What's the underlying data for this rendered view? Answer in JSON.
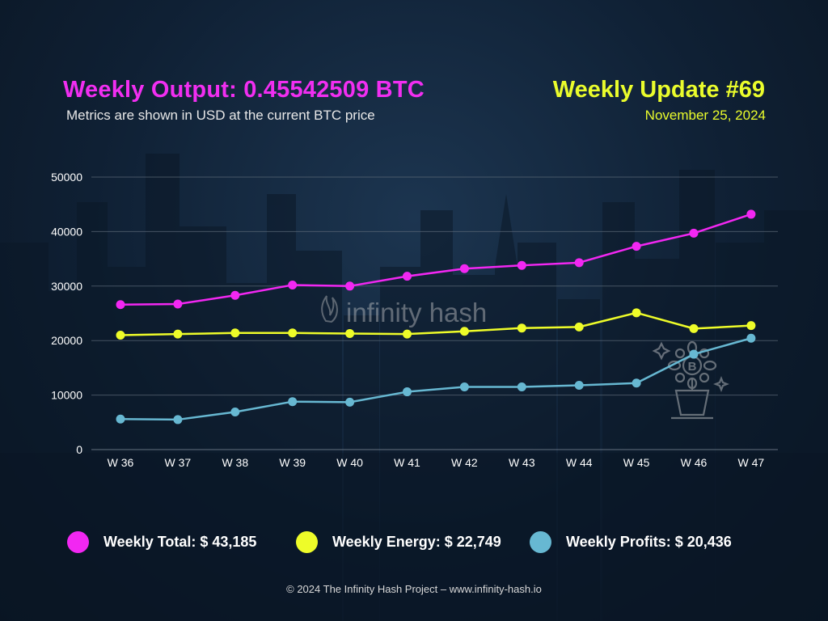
{
  "header": {
    "title": "Weekly Output: 0.45542509 BTC",
    "subtitle": "Metrics are shown in USD at the current BTC price",
    "update_title": "Weekly Update #69",
    "date": "November 25, 2024"
  },
  "watermark": {
    "text": "infinity hash",
    "icon": "bitcoin-plant-icon"
  },
  "legend": [
    {
      "label": "Weekly Total: $ 43,185",
      "color": "#f227f2"
    },
    {
      "label": "Weekly Energy: $ 22,749",
      "color": "#eefc29"
    },
    {
      "label": "Weekly Profits: $ 20,436",
      "color": "#67b8d2"
    }
  ],
  "footer": "© 2024 The Infinity Hash Project – www.infinity-hash.io",
  "colors": {
    "total": "#f227f2",
    "energy": "#eefc29",
    "profits": "#67b8d2",
    "background": "#0f2034"
  },
  "chart_data": {
    "type": "line",
    "categories": [
      "W 36",
      "W 37",
      "W 38",
      "W 39",
      "W 40",
      "W 41",
      "W 42",
      "W 43",
      "W 44",
      "W 45",
      "W 46",
      "W 47"
    ],
    "yticks": [
      0,
      10000,
      20000,
      30000,
      40000,
      50000
    ],
    "ylim": [
      0,
      50000
    ],
    "grid": true,
    "legend_position": "bottom",
    "series": [
      {
        "key": "total",
        "color": "#f227f2",
        "values": [
          26600,
          26700,
          28300,
          30200,
          30000,
          31800,
          33200,
          33800,
          34300,
          37300,
          39700,
          43185
        ]
      },
      {
        "key": "energy",
        "color": "#eefc29",
        "values": [
          21000,
          21200,
          21400,
          21400,
          21300,
          21200,
          21700,
          22300,
          22500,
          25100,
          22200,
          22749
        ]
      },
      {
        "key": "profits",
        "color": "#67b8d2",
        "values": [
          5600,
          5500,
          6900,
          8800,
          8700,
          10600,
          11500,
          11500,
          11800,
          12200,
          17500,
          20436
        ]
      }
    ]
  }
}
